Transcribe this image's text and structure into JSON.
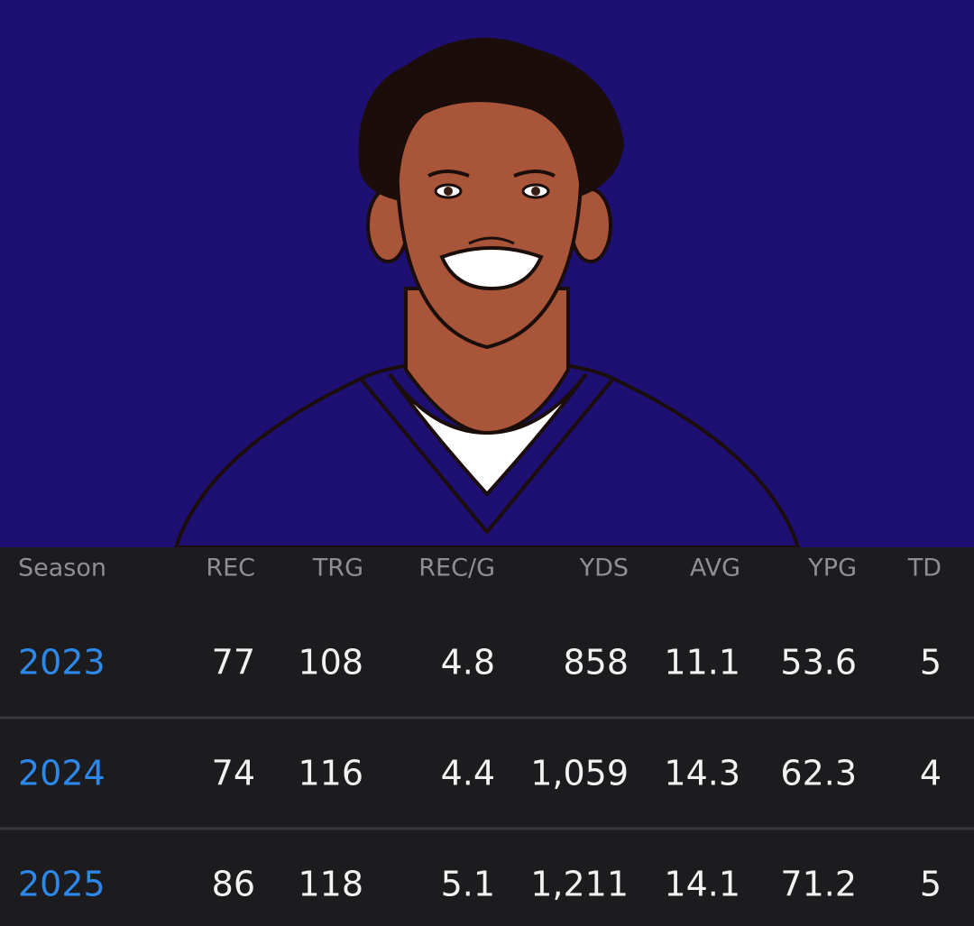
{
  "table": {
    "headers": [
      "Season",
      "REC",
      "TRG",
      "REC/G",
      "YDS",
      "AVG",
      "YPG",
      "TD"
    ],
    "rows": [
      [
        "2023",
        "77",
        "108",
        "4.8",
        "858",
        "11.1",
        "53.6",
        "5"
      ],
      [
        "2024",
        "74",
        "116",
        "4.4",
        "1,059",
        "14.3",
        "62.3",
        "4"
      ],
      [
        "2025",
        "86",
        "118",
        "5.1",
        "1,211",
        "14.1",
        "71.2",
        "5"
      ]
    ]
  }
}
